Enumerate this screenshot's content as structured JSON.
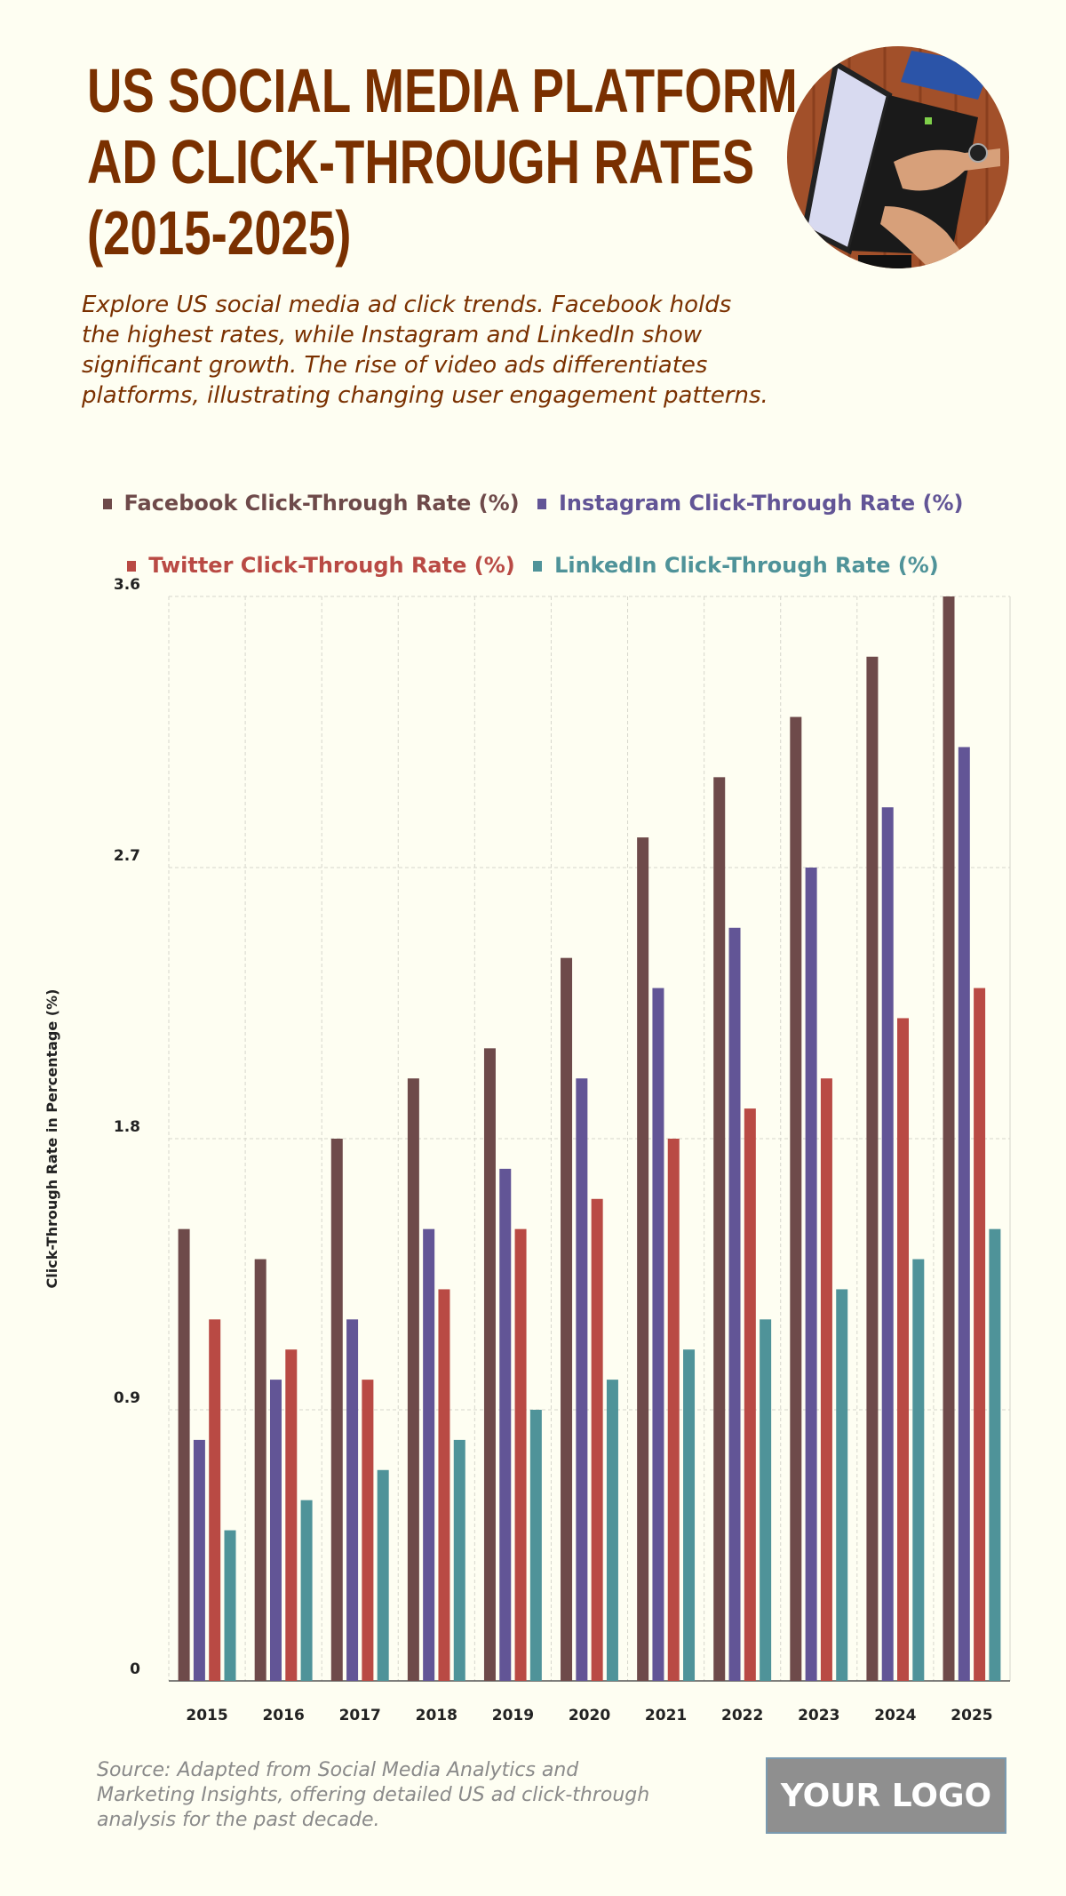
{
  "header": {
    "title_lines": [
      "US SOCIAL MEDIA PLATFORM",
      "AD CLICK-THROUGH RATES",
      "(2015-2025)"
    ],
    "subtitle": "Explore US social media ad click trends. Facebook holds the highest rates, while Instagram and LinkedIn show significant growth. The rise of video ads differentiates platforms, illustrating changing user engagement patterns.",
    "photo": "laptop-typing-photo"
  },
  "chart_data": {
    "type": "bar",
    "title": "",
    "xlabel": "",
    "ylabel": "Click-Through Rate in Percentage (%)",
    "ylim": [
      0,
      3.6
    ],
    "yticks": [
      "0",
      "0.9",
      "1.8",
      "2.7",
      "3.6"
    ],
    "grid": true,
    "legend_placement": "top",
    "categories": [
      "2015",
      "2016",
      "2017",
      "2018",
      "2019",
      "2020",
      "2021",
      "2022",
      "2023",
      "2024",
      "2025"
    ],
    "series": [
      {
        "name": "Facebook Click-Through Rate (%)",
        "color": "#6e4a4a",
        "values": [
          1.5,
          1.4,
          1.8,
          2.0,
          2.1,
          2.4,
          2.8,
          3.0,
          3.2,
          3.4,
          3.6
        ]
      },
      {
        "name": "Instagram Click-Through Rate (%)",
        "color": "#625596",
        "values": [
          0.8,
          1.0,
          1.2,
          1.5,
          1.7,
          2.0,
          2.3,
          2.5,
          2.7,
          2.9,
          3.1
        ]
      },
      {
        "name": "Twitter Click-Through Rate (%)",
        "color": "#b94a44",
        "values": [
          1.2,
          1.1,
          1.0,
          1.3,
          1.5,
          1.6,
          1.8,
          1.9,
          2.0,
          2.2,
          2.3
        ]
      },
      {
        "name": "LinkedIn Click-Through Rate (%)",
        "color": "#4f9399",
        "values": [
          0.5,
          0.6,
          0.7,
          0.8,
          0.9,
          1.0,
          1.1,
          1.2,
          1.3,
          1.4,
          1.5
        ]
      }
    ]
  },
  "footer": {
    "source": "Source: Adapted from Social Media Analytics and Marketing Insights, offering detailed US ad click-through analysis for the past decade.",
    "logo": "YOUR LOGO"
  }
}
